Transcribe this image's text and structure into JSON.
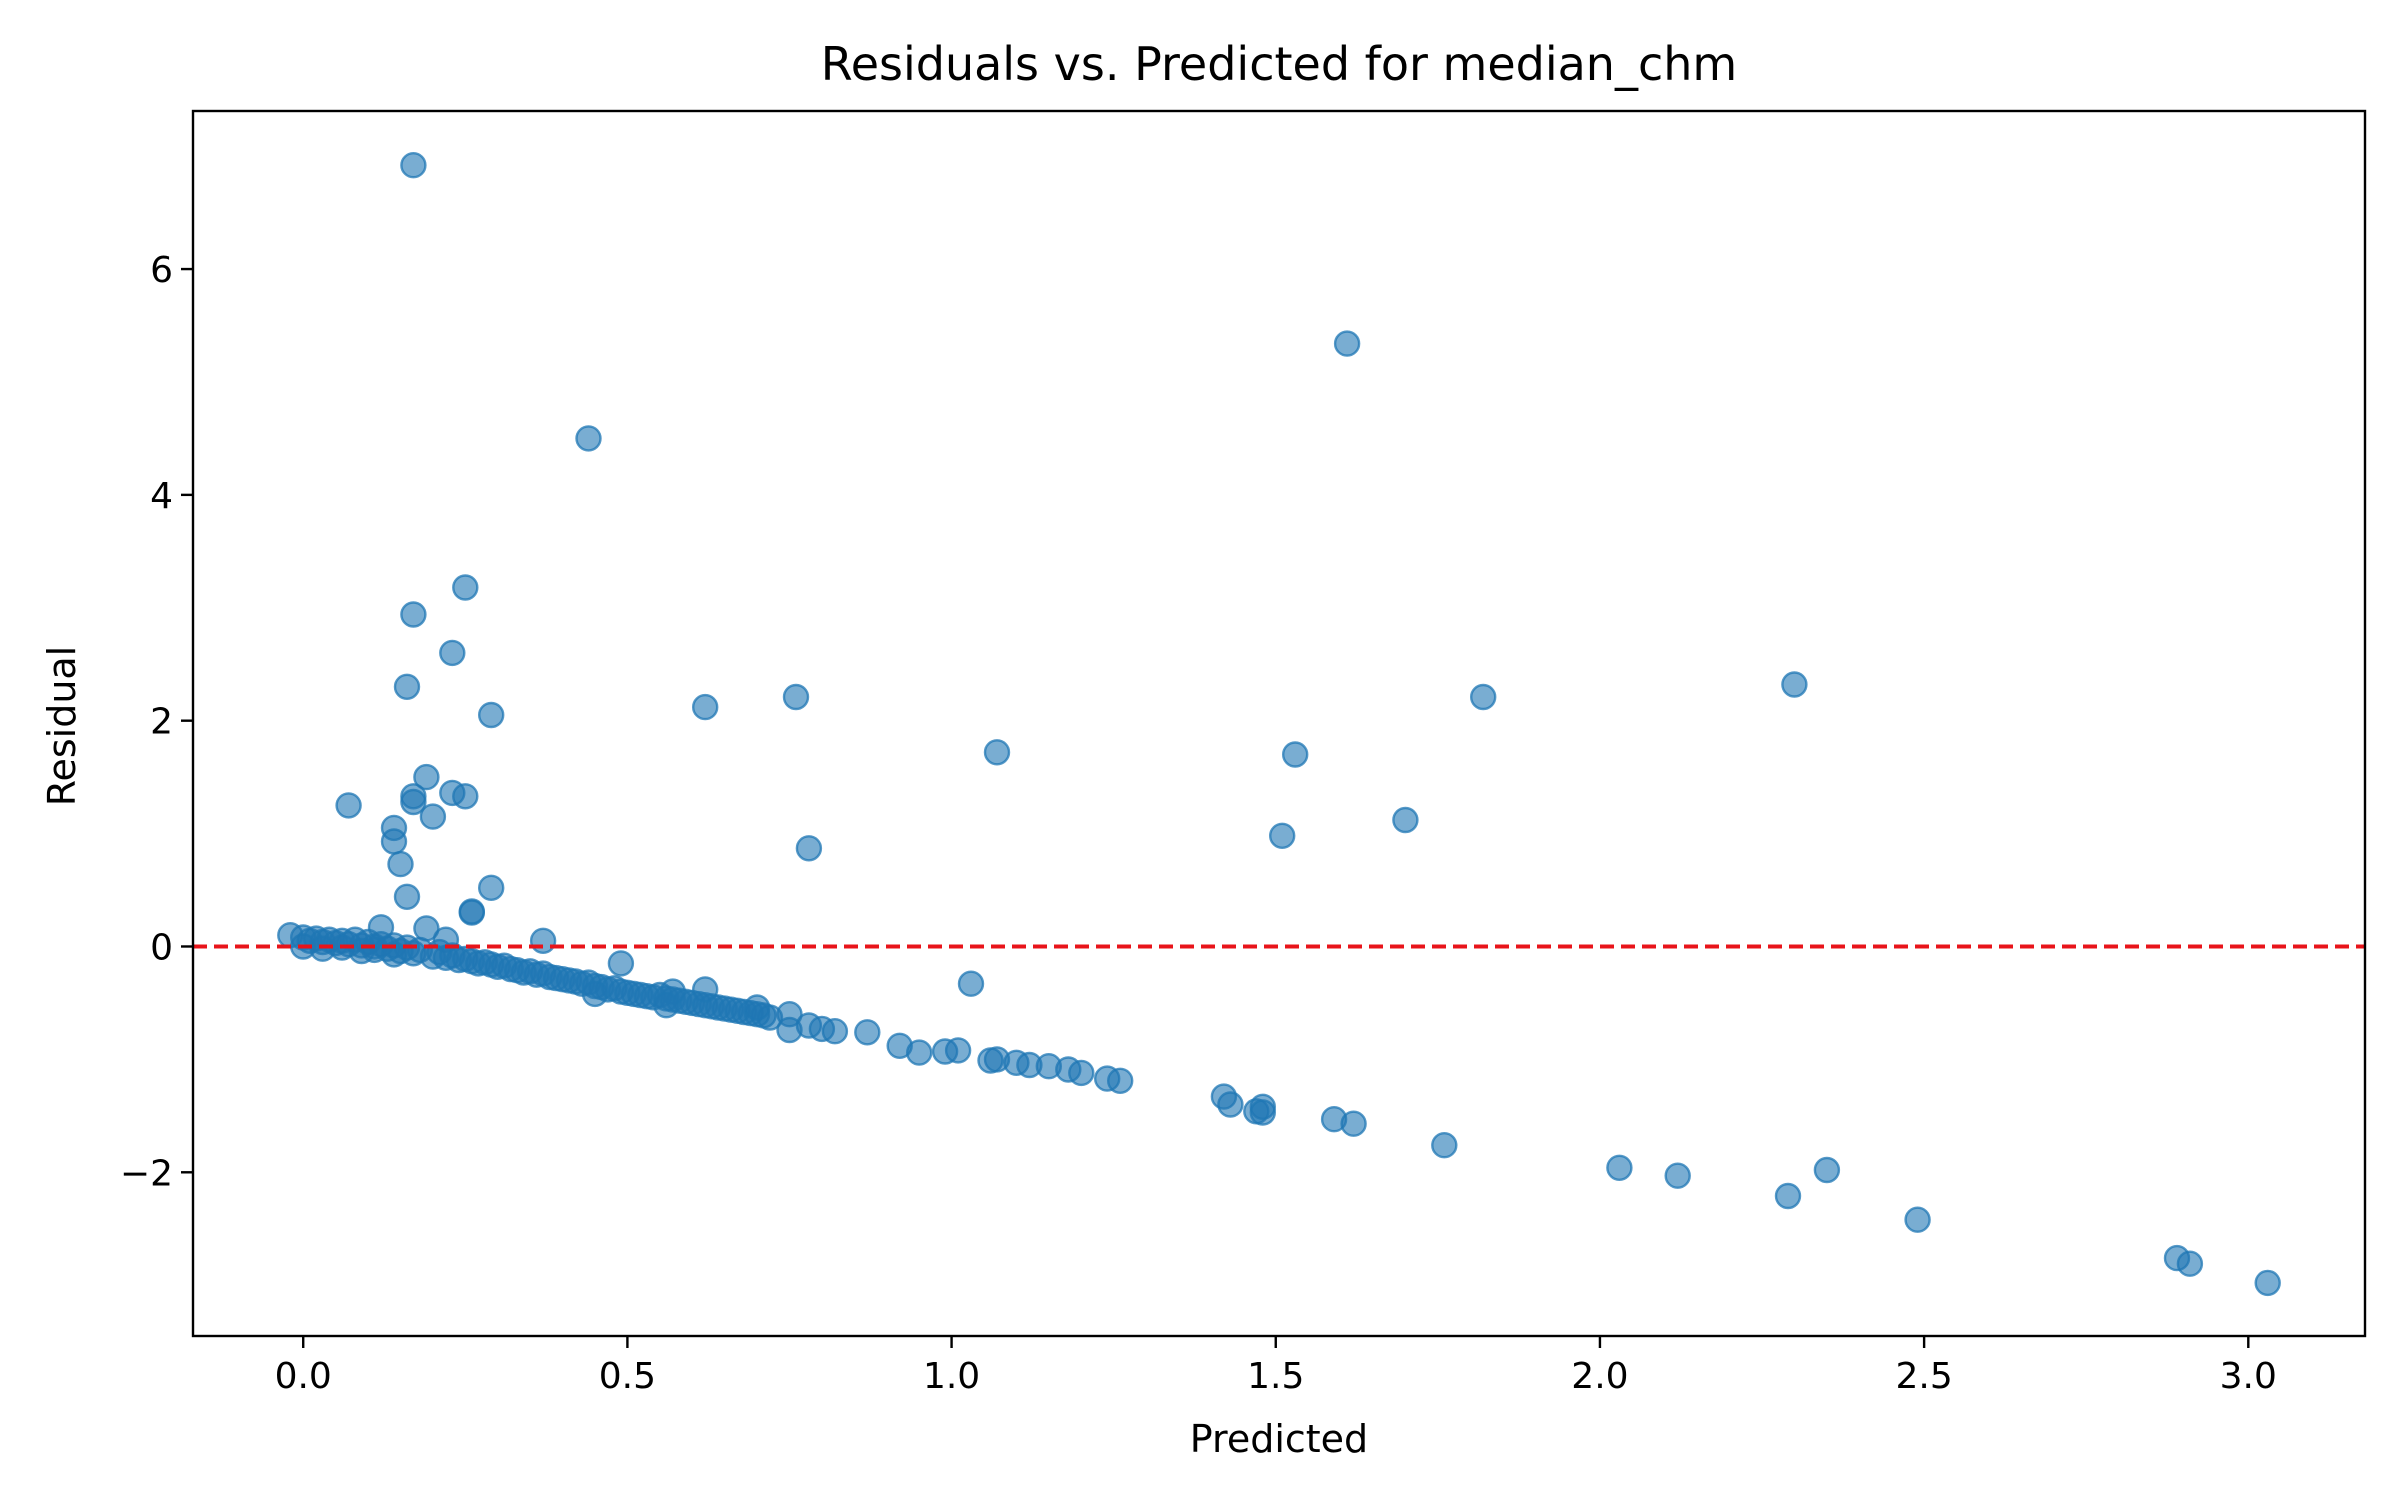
{
  "chart_data": {
    "type": "scatter",
    "title": "Residuals vs. Predicted for median_chm",
    "xlabel": "Predicted",
    "ylabel": "Residual",
    "xlim": [
      -0.17,
      3.18
    ],
    "ylim": [
      -3.45,
      7.4
    ],
    "xticks": [
      0.0,
      0.5,
      1.0,
      1.5,
      2.0,
      2.5,
      3.0
    ],
    "xtick_labels": [
      "0.0",
      "0.5",
      "1.0",
      "1.5",
      "2.0",
      "2.5",
      "3.0"
    ],
    "yticks": [
      -2,
      0,
      2,
      4,
      6
    ],
    "ytick_labels": [
      "−2",
      "0",
      "2",
      "4",
      "6"
    ],
    "grid": false,
    "legend": "none",
    "point_color": "#1f77b4",
    "reference_line": {
      "y": 0,
      "color": "#e8141a",
      "style": "dashed"
    },
    "points": [
      [
        0.17,
        6.92
      ],
      [
        1.61,
        5.34
      ],
      [
        0.44,
        4.5
      ],
      [
        0.25,
        3.18
      ],
      [
        0.17,
        2.94
      ],
      [
        0.23,
        2.6
      ],
      [
        0.16,
        2.3
      ],
      [
        0.29,
        2.05
      ],
      [
        0.62,
        2.12
      ],
      [
        0.76,
        2.21
      ],
      [
        1.82,
        2.21
      ],
      [
        2.3,
        2.32
      ],
      [
        1.07,
        1.72
      ],
      [
        1.53,
        1.7
      ],
      [
        0.19,
        1.5
      ],
      [
        0.23,
        1.36
      ],
      [
        0.25,
        1.33
      ],
      [
        0.17,
        1.33
      ],
      [
        0.17,
        1.28
      ],
      [
        0.07,
        1.25
      ],
      [
        0.2,
        1.15
      ],
      [
        1.7,
        1.12
      ],
      [
        0.14,
        1.05
      ],
      [
        0.14,
        0.93
      ],
      [
        1.51,
        0.98
      ],
      [
        0.78,
        0.87
      ],
      [
        0.15,
        0.73
      ],
      [
        0.29,
        0.52
      ],
      [
        0.16,
        0.44
      ],
      [
        0.26,
        0.31
      ],
      [
        0.26,
        0.3
      ],
      [
        0.37,
        0.05
      ],
      [
        0.19,
        0.16
      ],
      [
        0.12,
        0.17
      ],
      [
        0.22,
        0.06
      ],
      [
        0.49,
        -0.15
      ],
      [
        -0.02,
        0.1
      ],
      [
        0.0,
        0.08
      ],
      [
        0.01,
        0.05
      ],
      [
        0.02,
        0.07
      ],
      [
        0.03,
        0.04
      ],
      [
        0.04,
        0.06
      ],
      [
        0.05,
        0.03
      ],
      [
        0.06,
        0.05
      ],
      [
        0.07,
        0.02
      ],
      [
        0.08,
        0.06
      ],
      [
        0.09,
        0.01
      ],
      [
        0.1,
        0.04
      ],
      [
        0.11,
        0.0
      ],
      [
        0.12,
        0.02
      ],
      [
        0.13,
        -0.02
      ],
      [
        0.14,
        0.01
      ],
      [
        0.15,
        -0.04
      ],
      [
        0.16,
        -0.01
      ],
      [
        0.0,
        0.0
      ],
      [
        0.03,
        -0.02
      ],
      [
        0.06,
        -0.01
      ],
      [
        0.09,
        -0.04
      ],
      [
        0.11,
        -0.03
      ],
      [
        0.14,
        -0.07
      ],
      [
        0.17,
        -0.06
      ],
      [
        0.18,
        -0.03
      ],
      [
        0.2,
        -0.09
      ],
      [
        0.21,
        -0.05
      ],
      [
        0.22,
        -0.1
      ],
      [
        0.23,
        -0.08
      ],
      [
        0.24,
        -0.12
      ],
      [
        0.25,
        -0.11
      ],
      [
        0.26,
        -0.13
      ],
      [
        0.27,
        -0.15
      ],
      [
        0.28,
        -0.14
      ],
      [
        0.29,
        -0.16
      ],
      [
        0.3,
        -0.18
      ],
      [
        0.31,
        -0.17
      ],
      [
        0.32,
        -0.2
      ],
      [
        0.33,
        -0.21
      ],
      [
        0.34,
        -0.23
      ],
      [
        0.35,
        -0.22
      ],
      [
        0.36,
        -0.25
      ],
      [
        0.37,
        -0.24
      ],
      [
        0.38,
        -0.27
      ],
      [
        0.39,
        -0.28
      ],
      [
        0.4,
        -0.29
      ],
      [
        0.41,
        -0.3
      ],
      [
        0.42,
        -0.31
      ],
      [
        0.43,
        -0.33
      ],
      [
        0.44,
        -0.32
      ],
      [
        0.45,
        -0.35
      ],
      [
        0.46,
        -0.36
      ],
      [
        0.47,
        -0.38
      ],
      [
        0.48,
        -0.37
      ],
      [
        0.49,
        -0.4
      ],
      [
        0.5,
        -0.41
      ],
      [
        0.51,
        -0.42
      ],
      [
        0.52,
        -0.43
      ],
      [
        0.53,
        -0.44
      ],
      [
        0.54,
        -0.45
      ],
      [
        0.55,
        -0.43
      ],
      [
        0.56,
        -0.46
      ],
      [
        0.57,
        -0.47
      ],
      [
        0.58,
        -0.48
      ],
      [
        0.59,
        -0.49
      ],
      [
        0.6,
        -0.5
      ],
      [
        0.61,
        -0.51
      ],
      [
        0.62,
        -0.52
      ],
      [
        0.63,
        -0.53
      ],
      [
        0.64,
        -0.54
      ],
      [
        0.65,
        -0.55
      ],
      [
        0.66,
        -0.56
      ],
      [
        0.67,
        -0.57
      ],
      [
        0.68,
        -0.58
      ],
      [
        0.69,
        -0.59
      ],
      [
        0.7,
        -0.6
      ],
      [
        0.71,
        -0.61
      ],
      [
        0.72,
        -0.63
      ],
      [
        0.62,
        -0.38
      ],
      [
        0.57,
        -0.4
      ],
      [
        0.45,
        -0.42
      ],
      [
        0.56,
        -0.52
      ],
      [
        0.7,
        -0.54
      ],
      [
        0.75,
        -0.6
      ],
      [
        0.75,
        -0.74
      ],
      [
        0.78,
        -0.7
      ],
      [
        0.8,
        -0.73
      ],
      [
        0.82,
        -0.75
      ],
      [
        0.87,
        -0.76
      ],
      [
        0.92,
        -0.88
      ],
      [
        0.95,
        -0.94
      ],
      [
        0.99,
        -0.93
      ],
      [
        1.01,
        -0.92
      ],
      [
        1.03,
        -0.33
      ],
      [
        1.06,
        -1.01
      ],
      [
        1.07,
        -1.0
      ],
      [
        1.1,
        -1.03
      ],
      [
        1.12,
        -1.05
      ],
      [
        1.15,
        -1.06
      ],
      [
        1.18,
        -1.09
      ],
      [
        1.2,
        -1.12
      ],
      [
        1.24,
        -1.17
      ],
      [
        1.26,
        -1.19
      ],
      [
        1.42,
        -1.33
      ],
      [
        1.43,
        -1.4
      ],
      [
        1.47,
        -1.46
      ],
      [
        1.48,
        -1.42
      ],
      [
        1.48,
        -1.47
      ],
      [
        1.59,
        -1.53
      ],
      [
        1.62,
        -1.57
      ],
      [
        1.76,
        -1.76
      ],
      [
        2.03,
        -1.96
      ],
      [
        2.12,
        -2.03
      ],
      [
        2.29,
        -2.21
      ],
      [
        2.35,
        -1.98
      ],
      [
        2.49,
        -2.42
      ],
      [
        2.89,
        -2.76
      ],
      [
        2.91,
        -2.81
      ],
      [
        3.03,
        -2.98
      ]
    ]
  }
}
